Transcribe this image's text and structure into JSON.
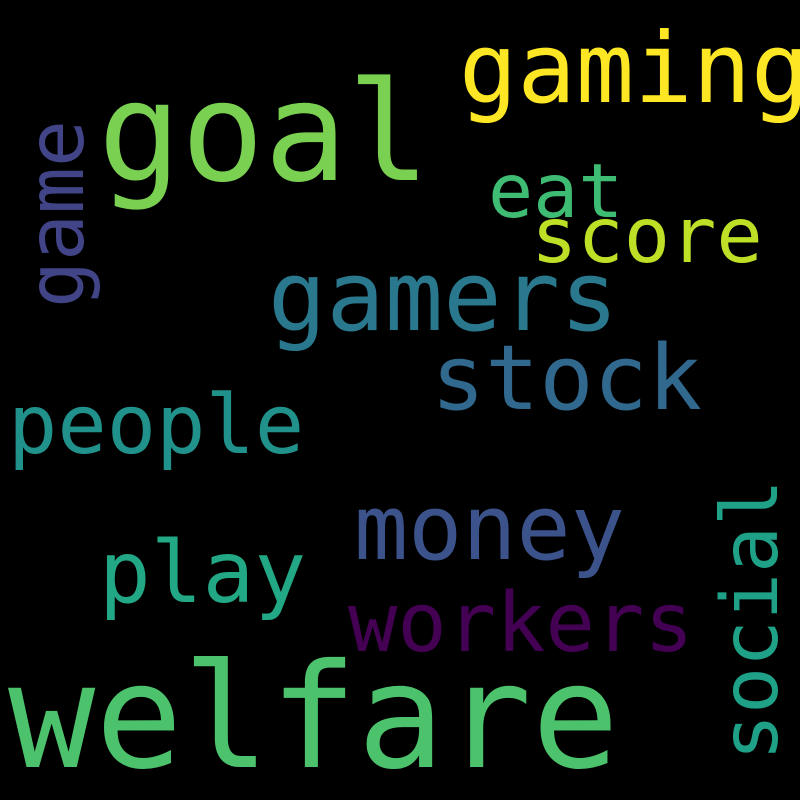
{
  "background": "#000000",
  "words": {
    "welfare": {
      "text": "welfare",
      "color": "#4cc26c"
    },
    "goal": {
      "text": "goal",
      "color": "#7ad151"
    },
    "gaming": {
      "text": "gaming",
      "color": "#fde725"
    },
    "gamers": {
      "text": "gamers",
      "color": "#2a788e"
    },
    "stock": {
      "text": "stock",
      "color": "#31688e"
    },
    "money": {
      "text": "money",
      "color": "#3b528b"
    },
    "workers": {
      "text": "workers",
      "color": "#440154"
    },
    "play": {
      "text": "play",
      "color": "#22a884"
    },
    "people": {
      "text": "people",
      "color": "#21918c"
    },
    "score": {
      "text": "score",
      "color": "#bddf26"
    },
    "eat": {
      "text": "eat",
      "color": "#3fbc73"
    },
    "game": {
      "text": "game",
      "color": "#414487"
    },
    "social": {
      "text": "social",
      "color": "#1fa188"
    }
  }
}
